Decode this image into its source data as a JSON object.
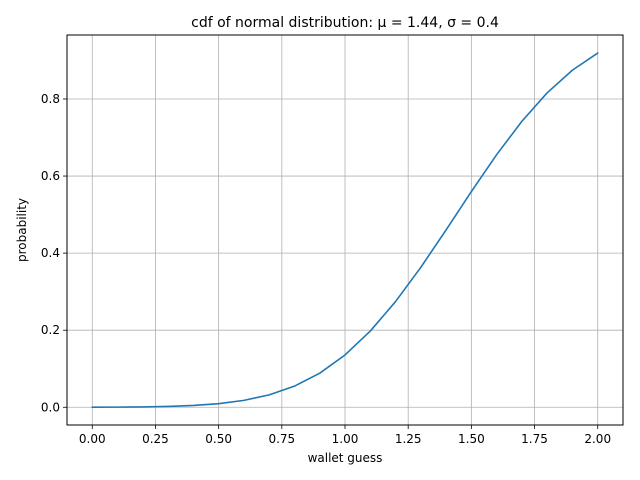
{
  "chart_data": {
    "type": "line",
    "title": "cdf of normal distribution: μ = 1.44, σ = 0.4",
    "xlabel": "wallet guess",
    "ylabel": "probability",
    "xlim": [
      -0.1,
      2.1
    ],
    "ylim": [
      -0.046,
      0.966
    ],
    "grid": true,
    "xticks": [
      0.0,
      0.25,
      0.5,
      0.75,
      1.0,
      1.25,
      1.5,
      1.75,
      2.0
    ],
    "xtick_labels": [
      "0.00",
      "0.25",
      "0.50",
      "0.75",
      "1.00",
      "1.25",
      "1.50",
      "1.75",
      "2.00"
    ],
    "yticks": [
      0.0,
      0.2,
      0.4,
      0.6,
      0.8
    ],
    "ytick_labels": [
      "0.0",
      "0.2",
      "0.4",
      "0.6",
      "0.8"
    ],
    "series": [
      {
        "color": "#1f77b4",
        "x": [
          0.0,
          0.1,
          0.2,
          0.3,
          0.4,
          0.5,
          0.6,
          0.7,
          0.8,
          0.9,
          1.0,
          1.1,
          1.2,
          1.3,
          1.4,
          1.5,
          1.6,
          1.7,
          1.8,
          1.9,
          2.0
        ],
        "y": [
          0.0002,
          0.0004,
          0.001,
          0.0022,
          0.0047,
          0.0093,
          0.0179,
          0.0322,
          0.0548,
          0.0885,
          0.1357,
          0.1977,
          0.2743,
          0.3632,
          0.4602,
          0.5596,
          0.6554,
          0.7422,
          0.8159,
          0.8749,
          0.9192
        ]
      }
    ]
  }
}
